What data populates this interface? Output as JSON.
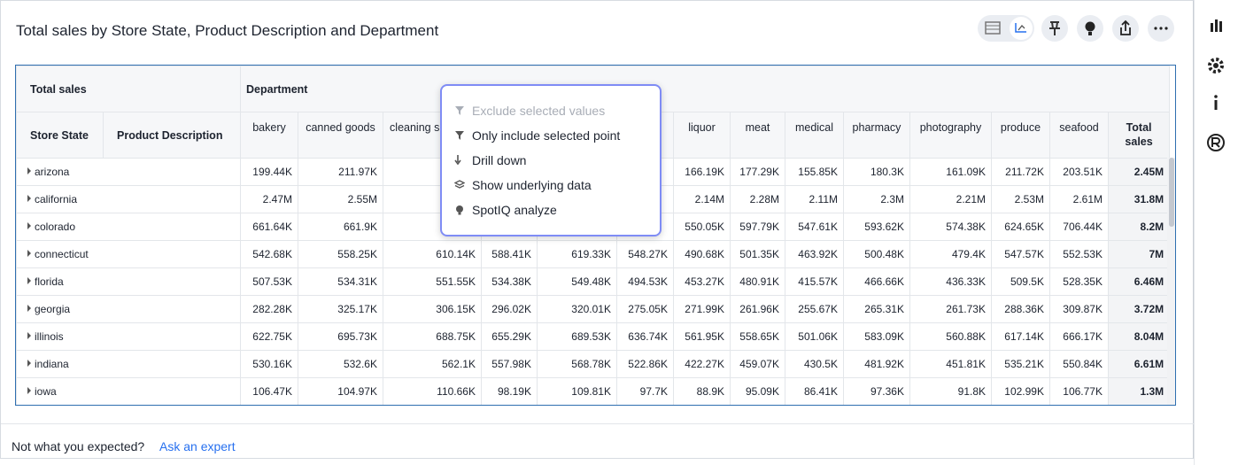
{
  "header": {
    "title": "Total sales by Store State, Product Description and Department"
  },
  "table": {
    "corner_label": "Total sales",
    "column_group": "Department",
    "row_headers": [
      "Store State",
      "Product Description"
    ],
    "columns": [
      "bakery",
      "canned goods",
      "cleaning supplies",
      null,
      null,
      null,
      "liquor",
      "meat",
      "medical",
      "pharmacy",
      "photography",
      "produce",
      "seafood",
      "Total sales"
    ],
    "rows": [
      {
        "state": "arizona",
        "cells": [
          "199.44K",
          "211.97K",
          null,
          null,
          null,
          null,
          "166.19K",
          "177.29K",
          "155.85K",
          "180.3K",
          "161.09K",
          "211.72K",
          "203.51K",
          "2.45M"
        ]
      },
      {
        "state": "california",
        "cells": [
          "2.47M",
          "2.55M",
          null,
          null,
          null,
          null,
          "2.14M",
          "2.28M",
          "2.11M",
          "2.3M",
          "2.21M",
          "2.53M",
          "2.61M",
          "31.8M"
        ]
      },
      {
        "state": "colorado",
        "cells": [
          "661.64K",
          "661.9K",
          null,
          null,
          null,
          null,
          "550.05K",
          "597.79K",
          "547.61K",
          "593.62K",
          "574.38K",
          "624.65K",
          "706.44K",
          "8.2M"
        ]
      },
      {
        "state": "connecticut",
        "cells": [
          "542.68K",
          "558.25K",
          "610.14K",
          "588.41K",
          "619.33K",
          "548.27K",
          "490.68K",
          "501.35K",
          "463.92K",
          "500.48K",
          "479.4K",
          "547.57K",
          "552.53K",
          "7M"
        ]
      },
      {
        "state": "florida",
        "cells": [
          "507.53K",
          "534.31K",
          "551.55K",
          "534.38K",
          "549.48K",
          "494.53K",
          "453.27K",
          "480.91K",
          "415.57K",
          "466.66K",
          "436.33K",
          "509.5K",
          "528.35K",
          "6.46M"
        ]
      },
      {
        "state": "georgia",
        "cells": [
          "282.28K",
          "325.17K",
          "306.15K",
          "296.02K",
          "320.01K",
          "275.05K",
          "271.99K",
          "261.96K",
          "255.67K",
          "265.31K",
          "261.73K",
          "288.36K",
          "309.87K",
          "3.72M"
        ]
      },
      {
        "state": "illinois",
        "cells": [
          "622.75K",
          "695.73K",
          "688.75K",
          "655.29K",
          "689.53K",
          "636.74K",
          "561.95K",
          "558.65K",
          "501.06K",
          "583.09K",
          "560.88K",
          "617.14K",
          "666.17K",
          "8.04M"
        ]
      },
      {
        "state": "indiana",
        "cells": [
          "530.16K",
          "532.6K",
          "562.1K",
          "557.98K",
          "568.78K",
          "522.86K",
          "422.27K",
          "459.07K",
          "430.5K",
          "481.92K",
          "451.81K",
          "535.21K",
          "550.84K",
          "6.61M"
        ]
      },
      {
        "state": "iowa",
        "cells": [
          "106.47K",
          "104.97K",
          "110.66K",
          "98.19K",
          "109.81K",
          "97.7K",
          "88.9K",
          "95.09K",
          "86.41K",
          "97.36K",
          "91.8K",
          "102.99K",
          "106.77K",
          "1.3M"
        ]
      }
    ]
  },
  "menu": {
    "items": [
      "Exclude selected values",
      "Only include selected point",
      "Drill down",
      "Show underlying data",
      "SpotIQ analyze"
    ]
  },
  "footer": {
    "prompt": "Not what you expected?",
    "link": "Ask an expert"
  }
}
